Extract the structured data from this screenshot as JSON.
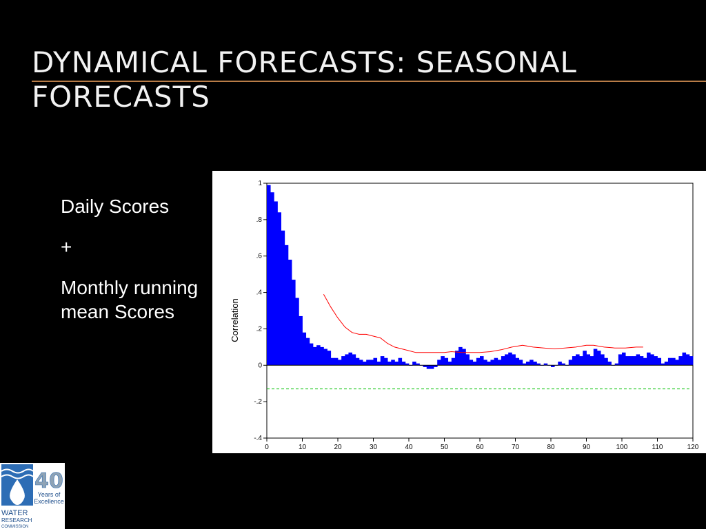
{
  "slide": {
    "title": "DYNAMICAL FORECASTS: SEASONAL FORECASTS",
    "accent_color": "#b87c47"
  },
  "bullets": {
    "item1": "Daily Scores",
    "item2": "+",
    "item3": "Monthly running mean Scores"
  },
  "logo": {
    "number": "40",
    "tagline_1": "Years of",
    "tagline_2": "Excellence",
    "org_1": "WATER",
    "org_2": "RESEARCH",
    "org_3": "COMMISSION"
  },
  "chart_data": {
    "type": "bar",
    "title": "",
    "xlabel": "",
    "ylabel": "Correlation",
    "xlim": [
      0,
      120
    ],
    "ylim": [
      -0.4,
      1
    ],
    "xticks": [
      0,
      10,
      20,
      30,
      40,
      50,
      60,
      70,
      80,
      90,
      100,
      110,
      120
    ],
    "yticks": [
      -0.4,
      -0.2,
      0,
      0.2,
      0.4,
      0.6,
      0.8,
      1
    ],
    "ytick_labels": [
      "-.4",
      "-.2",
      "0",
      ".2",
      ".4",
      ".6",
      ".8",
      "1"
    ],
    "grid": false,
    "legend": "none",
    "series": [
      {
        "type": "bar",
        "color": "#0000ff",
        "x": [
          1,
          2,
          3,
          4,
          5,
          6,
          7,
          8,
          9,
          10,
          11,
          12,
          13,
          14,
          15,
          16,
          17,
          18,
          19,
          20,
          21,
          22,
          23,
          24,
          25,
          26,
          27,
          28,
          29,
          30,
          31,
          32,
          33,
          34,
          35,
          36,
          37,
          38,
          39,
          40,
          41,
          42,
          43,
          44,
          45,
          46,
          47,
          48,
          49,
          50,
          51,
          52,
          53,
          54,
          55,
          56,
          57,
          58,
          59,
          60,
          61,
          62,
          63,
          64,
          65,
          66,
          67,
          68,
          69,
          70,
          71,
          72,
          73,
          74,
          75,
          76,
          77,
          78,
          79,
          80,
          81,
          82,
          83,
          84,
          85,
          86,
          87,
          88,
          89,
          90,
          91,
          92,
          93,
          94,
          95,
          96,
          97,
          98,
          99,
          100,
          101,
          102,
          103,
          104,
          105,
          106,
          107,
          108,
          109,
          110,
          111,
          112,
          113,
          114,
          115,
          116,
          117,
          118,
          119,
          120
        ],
        "values": [
          0.99,
          0.95,
          0.9,
          0.84,
          0.74,
          0.66,
          0.58,
          0.47,
          0.37,
          0.27,
          0.18,
          0.15,
          0.12,
          0.1,
          0.11,
          0.1,
          0.09,
          0.08,
          0.04,
          0.04,
          0.03,
          0.05,
          0.06,
          0.07,
          0.06,
          0.04,
          0.03,
          0.02,
          0.03,
          0.03,
          0.04,
          0.02,
          0.05,
          0.04,
          0.02,
          0.03,
          0.02,
          0.04,
          0.02,
          0.01,
          0.0,
          0.02,
          0.01,
          0.0,
          -0.01,
          -0.02,
          -0.02,
          -0.01,
          0.03,
          0.05,
          0.04,
          0.02,
          0.04,
          0.08,
          0.1,
          0.09,
          0.06,
          0.03,
          0.02,
          0.04,
          0.05,
          0.03,
          0.02,
          0.03,
          0.04,
          0.03,
          0.05,
          0.06,
          0.07,
          0.06,
          0.04,
          0.03,
          0.01,
          0.02,
          0.03,
          0.02,
          0.01,
          0.0,
          0.01,
          0.0,
          -0.01,
          0.0,
          0.02,
          0.01,
          0.0,
          0.03,
          0.05,
          0.06,
          0.05,
          0.08,
          0.06,
          0.05,
          0.09,
          0.08,
          0.06,
          0.04,
          0.02,
          0.0,
          0.01,
          0.06,
          0.07,
          0.05,
          0.05,
          0.05,
          0.06,
          0.05,
          0.04,
          0.07,
          0.06,
          0.05,
          0.04,
          0.01,
          0.02,
          0.04,
          0.04,
          0.03,
          0.05,
          0.07,
          0.06,
          0.05
        ]
      },
      {
        "type": "line",
        "color": "#ff0000",
        "x": [
          16,
          18,
          20,
          22,
          24,
          26,
          28,
          30,
          32,
          34,
          36,
          38,
          40,
          42,
          45,
          48,
          50,
          52,
          55,
          58,
          60,
          63,
          66,
          69,
          72,
          75,
          78,
          81,
          84,
          87,
          90,
          92,
          95,
          98,
          101,
          104,
          106
        ],
        "values": [
          0.39,
          0.32,
          0.26,
          0.21,
          0.18,
          0.17,
          0.17,
          0.16,
          0.15,
          0.12,
          0.1,
          0.09,
          0.08,
          0.07,
          0.07,
          0.07,
          0.07,
          0.075,
          0.07,
          0.07,
          0.07,
          0.075,
          0.085,
          0.1,
          0.11,
          0.1,
          0.095,
          0.09,
          0.095,
          0.1,
          0.11,
          0.11,
          0.1,
          0.095,
          0.095,
          0.1,
          0.1
        ]
      },
      {
        "type": "hline",
        "color": "#00c000",
        "style": "dashed",
        "y": -0.13,
        "x_range": [
          0,
          119
        ]
      }
    ]
  }
}
